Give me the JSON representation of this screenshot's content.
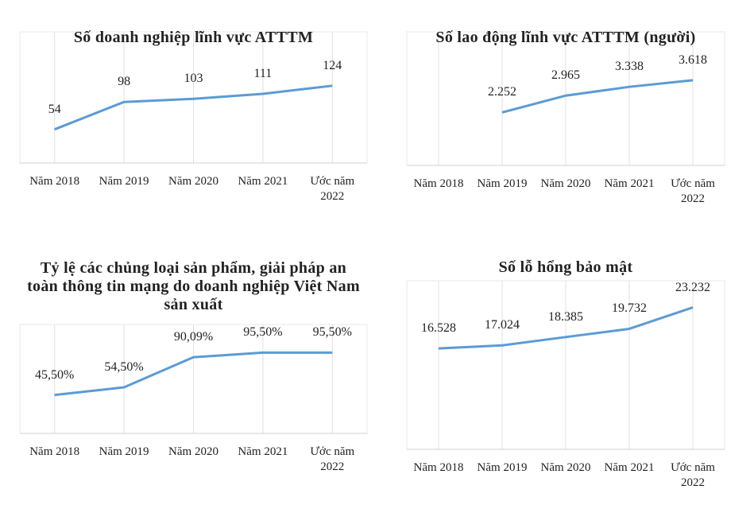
{
  "chart_data": [
    {
      "type": "line",
      "title": "Số doanh nghiệp lĩnh vực ATTTM",
      "categories": [
        "Năm 2018",
        "Năm 2019",
        "Năm 2020",
        "Năm 2021",
        "Ước năm 2022"
      ],
      "values": [
        54,
        98,
        103,
        111,
        124
      ],
      "color": "#5b9bd5",
      "ylim": [
        0,
        185
      ]
    },
    {
      "type": "line",
      "title": "Số lao động lĩnh vực ATTTM (người)",
      "categories": [
        "Năm 2018",
        "Năm 2019",
        "Năm 2020",
        "Năm 2021",
        "Ước năm 2022"
      ],
      "values": [
        null,
        2252,
        2965,
        3338,
        3618
      ],
      "value_labels": [
        null,
        "2.252",
        "2.965",
        "3.338",
        "3.618"
      ],
      "color": "#5b9bd5",
      "ylim": [
        0,
        5000
      ]
    },
    {
      "type": "line",
      "title": "Tỷ lệ các chủng loại sản phẩm, giải pháp an toàn thông tin mạng do doanh nghiệp Việt Nam sản xuất",
      "categories": [
        "Năm 2018",
        "Năm 2019",
        "Năm 2020",
        "Năm 2021",
        "Ước năm 2022"
      ],
      "values": [
        45.5,
        54.5,
        90.09,
        95.5,
        95.5
      ],
      "value_labels": [
        "45,50%",
        "54,50%",
        "90,09%",
        "95,50%",
        "95,50%"
      ],
      "color": "#5b9bd5",
      "ylim": [
        0,
        110
      ]
    },
    {
      "type": "line",
      "title": "Số lỗ hổng bảo mật",
      "categories": [
        "Năm 2018",
        "Năm 2019",
        "Năm 2020",
        "Năm 2021",
        "Ước năm 2022"
      ],
      "values": [
        16528,
        17024,
        18385,
        19732,
        23232
      ],
      "value_labels": [
        "16.528",
        "17.024",
        "18.385",
        "19.732",
        "23.232"
      ],
      "color": "#5b9bd5",
      "ylim": [
        0,
        25000
      ]
    }
  ]
}
